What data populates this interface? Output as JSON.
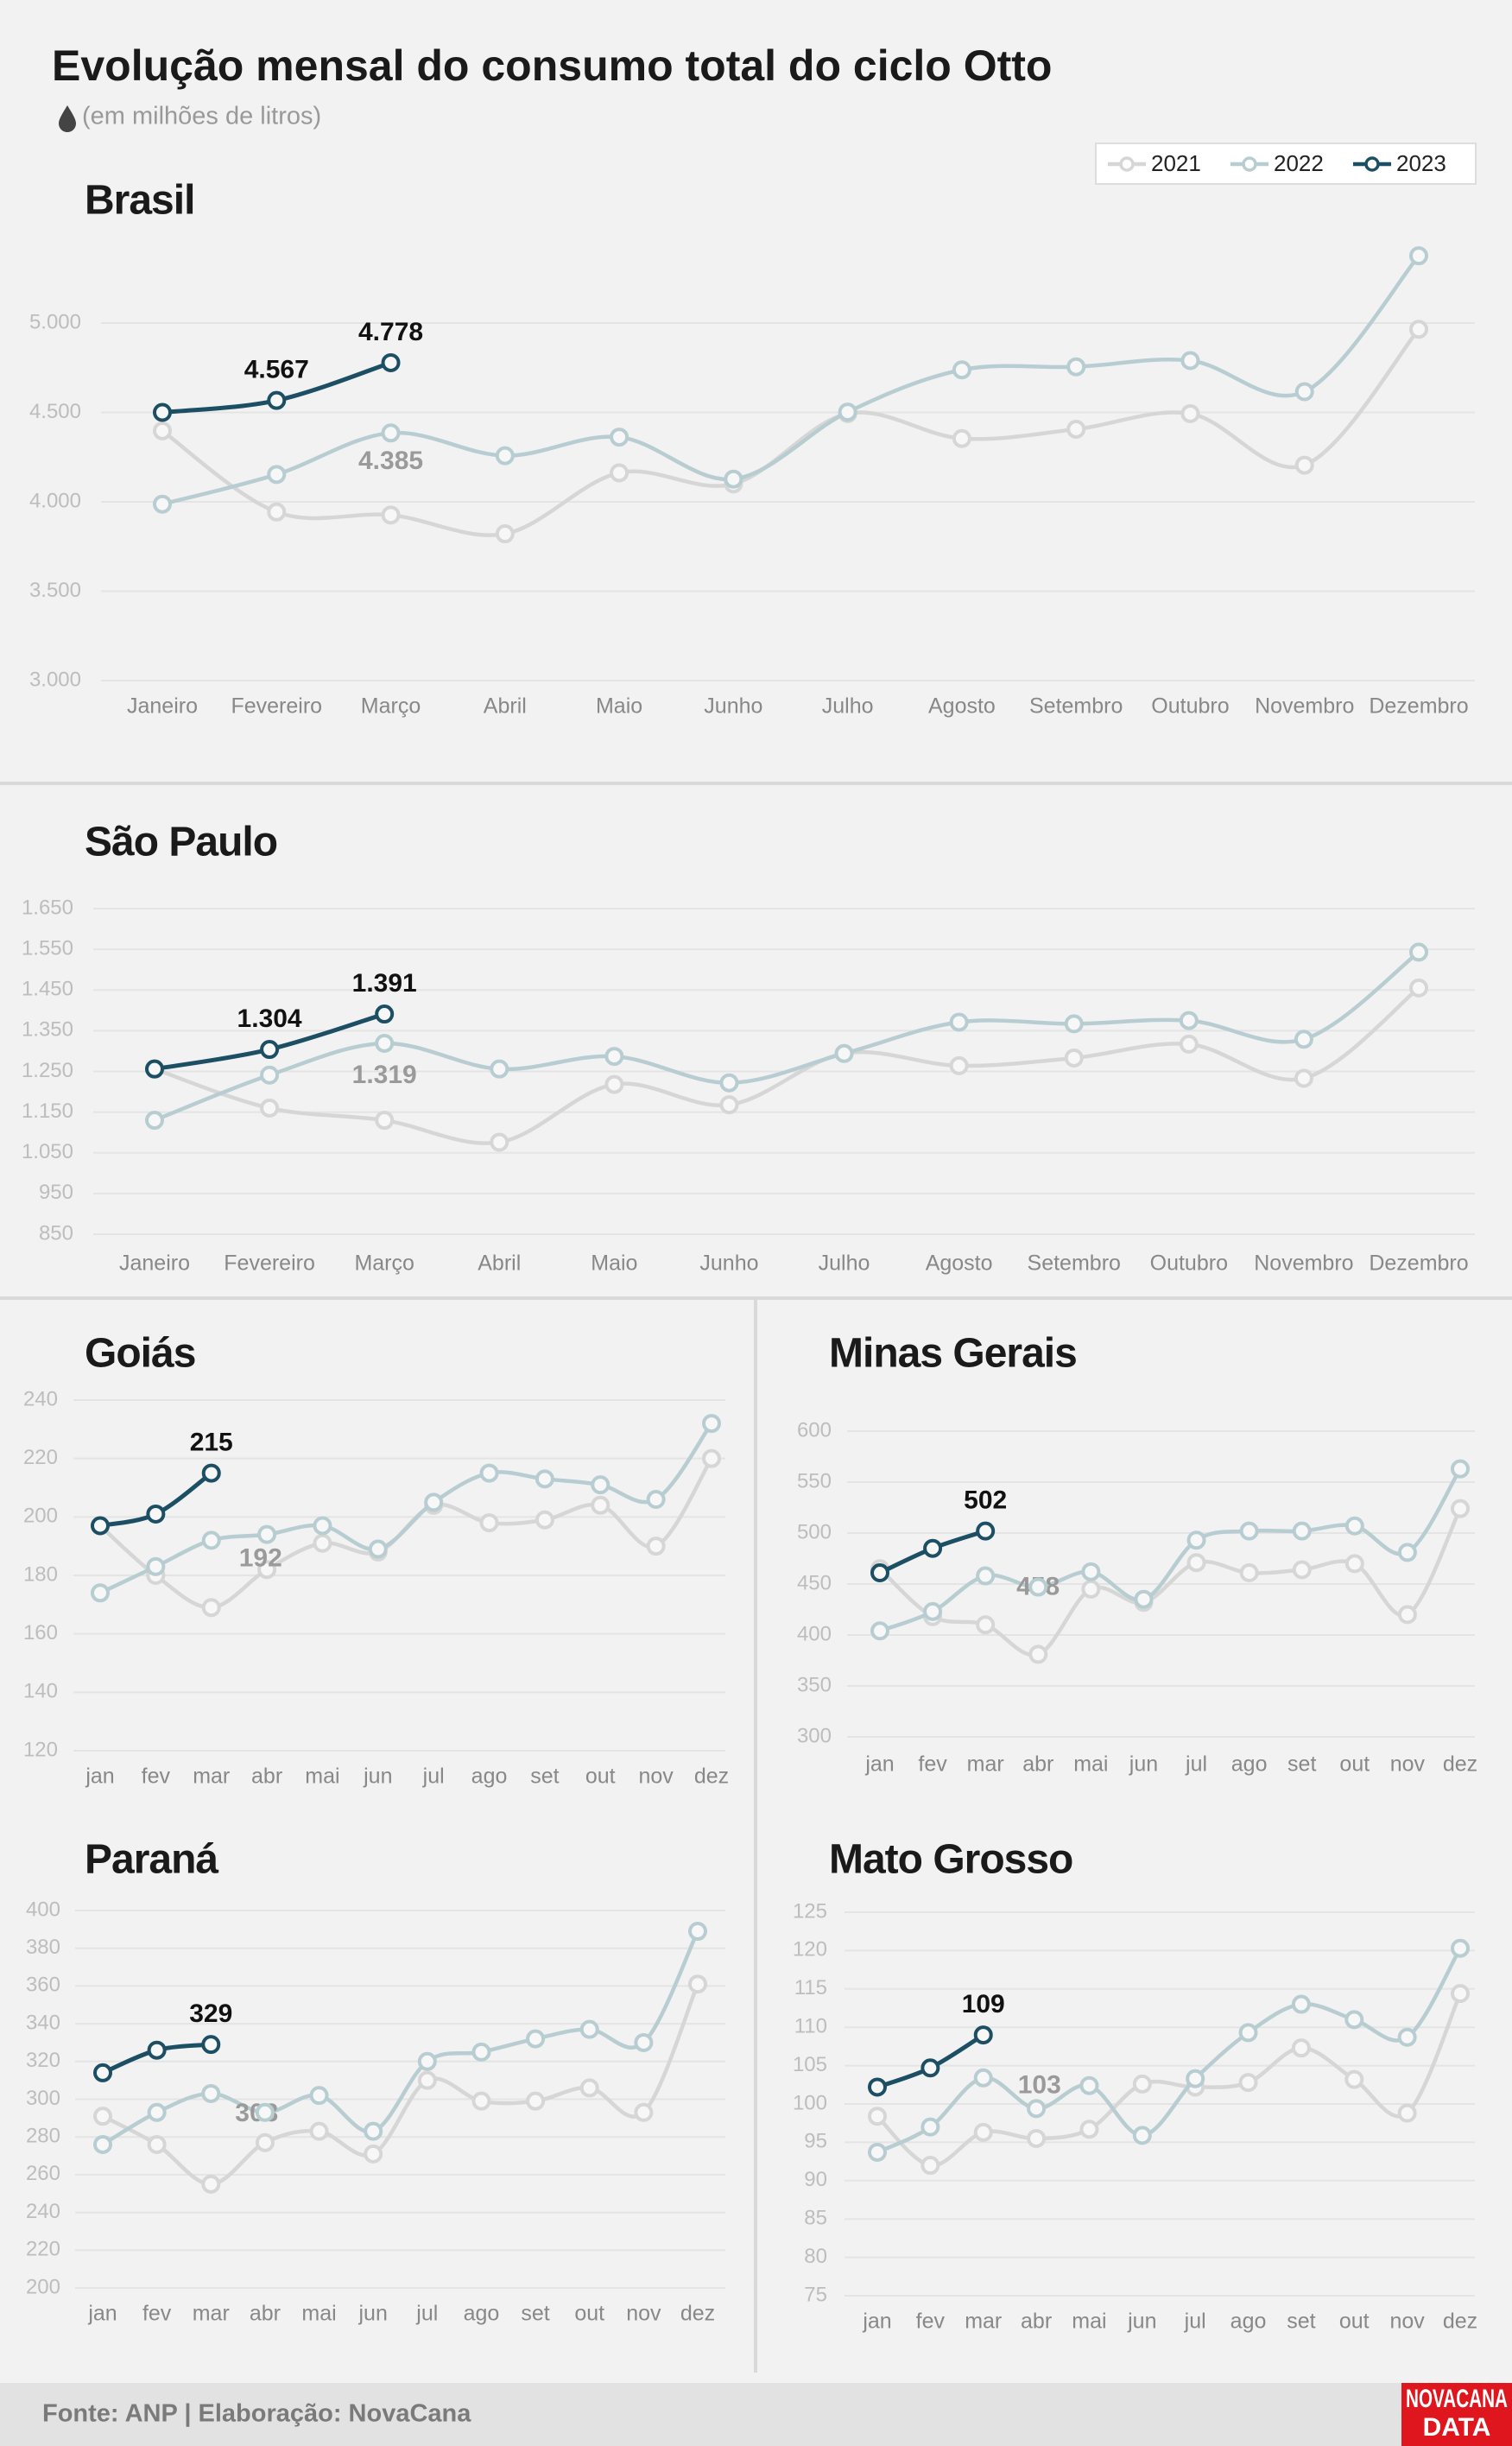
{
  "title": "Evolução mensal do consumo total do ciclo Otto",
  "subtitle": "(em milhões de litros)",
  "source": "Fonte: ANP | Elaboração: NovaCana",
  "logo": [
    "NOVACANA",
    "DATA"
  ],
  "chart_data": [
    {
      "type": "line",
      "title": "Brasil",
      "categories": [
        "Janeiro",
        "Fevereiro",
        "Março",
        "Abril",
        "Maio",
        "Junho",
        "Julho",
        "Agosto",
        "Setembro",
        "Outubro",
        "Novembro",
        "Dezembro"
      ],
      "series": [
        {
          "name": "2021",
          "color": "#d6d6d6",
          "values": [
            4397,
            3943,
            3926,
            3821,
            4162,
            4100,
            4493,
            4354,
            4406,
            4493,
            4205,
            4965
          ],
          "value_labels": [
            null,
            null,
            null,
            null,
            null,
            null,
            null,
            null,
            null,
            null,
            null,
            null
          ]
        },
        {
          "name": "2022",
          "color": "#b7cdd2",
          "values": [
            3987,
            4153,
            4385,
            4258,
            4362,
            4127,
            4502,
            4738,
            4755,
            4790,
            4616,
            5376
          ],
          "value_labels": [
            null,
            null,
            "4.385",
            null,
            null,
            null,
            null,
            null,
            null,
            null,
            null,
            null
          ]
        },
        {
          "name": "2023",
          "color": "#1c4f63",
          "values": [
            4500,
            4567,
            4778,
            null,
            null,
            null,
            null,
            null,
            null,
            null,
            null,
            null
          ],
          "value_labels": [
            null,
            "4.567",
            "4.778",
            null,
            null,
            null,
            null,
            null,
            null,
            null,
            null,
            null
          ]
        }
      ],
      "ylim": [
        3000,
        5000
      ],
      "yticks": [
        {
          "value": 3000,
          "label": "3.000"
        },
        {
          "value": 3500,
          "label": "3.500"
        },
        {
          "value": 4000,
          "label": "4.000"
        },
        {
          "value": 4500,
          "label": "4.500"
        },
        {
          "value": 5000,
          "label": "5.000"
        }
      ],
      "grid": true,
      "legend": "upper right"
    },
    {
      "type": "line",
      "title": "São Paulo",
      "categories": [
        "Janeiro",
        "Fevereiro",
        "Março",
        "Abril",
        "Maio",
        "Junho",
        "Julho",
        "Agosto",
        "Setembro",
        "Outubro",
        "Novembro",
        "Dezembro"
      ],
      "series": [
        {
          "color": "#d6d6d6",
          "values": [
            1256,
            1160,
            1130,
            1076,
            1218,
            1168,
            1294,
            1264,
            1283,
            1317,
            1233,
            1455
          ],
          "value_labels": [
            null,
            null,
            null,
            null,
            null,
            null,
            null,
            null,
            null,
            null,
            null,
            null
          ]
        },
        {
          "color": "#b7cdd2",
          "values": [
            1130,
            1241,
            1319,
            1256,
            1287,
            1222,
            1294,
            1371,
            1367,
            1375,
            1329,
            1543
          ],
          "value_labels": [
            null,
            null,
            "1.319",
            null,
            null,
            null,
            null,
            null,
            null,
            null,
            null,
            null
          ]
        },
        {
          "color": "#1c4f63",
          "values": [
            1256,
            1304,
            1391,
            null,
            null,
            null,
            null,
            null,
            null,
            null,
            null,
            null
          ],
          "value_labels": [
            null,
            "1.304",
            "1.391",
            null,
            null,
            null,
            null,
            null,
            null,
            null,
            null,
            null
          ]
        }
      ],
      "ylim": [
        850,
        1650
      ],
      "yticks": [
        850,
        950,
        {
          "value": 1050,
          "label": "1.050"
        },
        {
          "value": 1150,
          "label": "1.150"
        },
        {
          "value": 1250,
          "label": "1.250"
        },
        {
          "value": 1350,
          "label": "1.350"
        },
        {
          "value": 1450,
          "label": "1.450"
        },
        {
          "value": 1550,
          "label": "1.550"
        },
        {
          "value": 1650,
          "label": "1.650"
        }
      ],
      "grid": true
    },
    {
      "type": "line",
      "title": "Goiás",
      "categories": [
        "jan",
        "fev",
        "mar",
        "abr",
        "mai",
        "jun",
        "jul",
        "ago",
        "set",
        "out",
        "nov",
        "dez"
      ],
      "series": [
        {
          "color": "#d6d6d6",
          "values": [
            197,
            180,
            169,
            182,
            191,
            188,
            204,
            198,
            199,
            204,
            190,
            220
          ],
          "value_labels": [
            null,
            null,
            null,
            null,
            null,
            null,
            null,
            null,
            null,
            null,
            null,
            null
          ]
        },
        {
          "color": "#b7cdd2",
          "values": [
            174,
            183,
            192,
            194,
            197,
            189,
            205,
            215,
            213,
            211,
            206,
            232
          ],
          "value_labels": [
            null,
            null,
            "192",
            null,
            null,
            null,
            null,
            null,
            null,
            null,
            null,
            null
          ]
        },
        {
          "color": "#1c4f63",
          "values": [
            197,
            201,
            215,
            null,
            null,
            null,
            null,
            null,
            null,
            null,
            null,
            null
          ],
          "value_labels": [
            null,
            null,
            "215",
            null,
            null,
            null,
            null,
            null,
            null,
            null,
            null,
            null
          ]
        }
      ],
      "ylim": [
        120,
        240
      ],
      "yticks": [
        120,
        140,
        160,
        180,
        200,
        220,
        240
      ],
      "grid": true
    },
    {
      "type": "line",
      "title": "Minas Gerais",
      "categories": [
        "jan",
        "fev",
        "mar",
        "abr",
        "mai",
        "jun",
        "jul",
        "ago",
        "set",
        "out",
        "nov",
        "dez"
      ],
      "series": [
        {
          "color": "#d6d6d6",
          "values": [
            465,
            418,
            410,
            381,
            445,
            432,
            471,
            461,
            464,
            470,
            420,
            524
          ],
          "value_labels": [
            null,
            null,
            null,
            null,
            null,
            null,
            null,
            null,
            null,
            null,
            null,
            null
          ]
        },
        {
          "color": "#b7cdd2",
          "values": [
            404,
            423,
            458,
            447,
            462,
            435,
            493,
            502,
            502,
            507,
            481,
            563
          ],
          "value_labels": [
            null,
            null,
            "458",
            null,
            null,
            null,
            null,
            null,
            null,
            null,
            null,
            null
          ]
        },
        {
          "color": "#1c4f63",
          "values": [
            461,
            485,
            502,
            null,
            null,
            null,
            null,
            null,
            null,
            null,
            null,
            null
          ],
          "value_labels": [
            null,
            null,
            "502",
            null,
            null,
            null,
            null,
            null,
            null,
            null,
            null,
            null
          ]
        }
      ],
      "ylim": [
        300,
        600
      ],
      "yticks": [
        300,
        350,
        400,
        450,
        500,
        550,
        600
      ],
      "grid": true
    },
    {
      "type": "line",
      "title": "Paraná",
      "categories": [
        "jan",
        "fev",
        "mar",
        "abr",
        "mai",
        "jun",
        "jul",
        "ago",
        "set",
        "out",
        "nov",
        "dez"
      ],
      "series": [
        {
          "color": "#d6d6d6",
          "values": [
            291,
            276,
            255,
            277,
            283,
            271,
            310,
            299,
            299,
            306,
            293,
            361
          ],
          "value_labels": [
            null,
            null,
            null,
            null,
            null,
            null,
            null,
            null,
            null,
            null,
            null,
            null
          ]
        },
        {
          "color": "#b7cdd2",
          "values": [
            276,
            293,
            303,
            293,
            302,
            283,
            320,
            325,
            332,
            337,
            330,
            389
          ],
          "value_labels": [
            null,
            null,
            "303",
            null,
            null,
            null,
            null,
            null,
            null,
            null,
            null,
            null
          ]
        },
        {
          "color": "#1c4f63",
          "values": [
            314,
            326,
            329,
            null,
            null,
            null,
            null,
            null,
            null,
            null,
            null,
            null
          ],
          "value_labels": [
            null,
            null,
            "329",
            null,
            null,
            null,
            null,
            null,
            null,
            null,
            null,
            null
          ]
        }
      ],
      "ylim": [
        200,
        400
      ],
      "yticks": [
        200,
        220,
        240,
        260,
        280,
        300,
        320,
        340,
        360,
        380,
        400
      ],
      "grid": true
    },
    {
      "type": "line",
      "title": "Mato Grosso",
      "categories": [
        "jan",
        "fev",
        "mar",
        "abr",
        "mai",
        "jun",
        "jul",
        "ago",
        "set",
        "out",
        "nov",
        "dez"
      ],
      "series": [
        {
          "color": "#d6d6d6",
          "values": [
            98.4,
            92,
            96.3,
            95.5,
            96.7,
            102.6,
            102.2,
            102.8,
            107.3,
            103.2,
            98.8,
            114.4
          ],
          "value_labels": [
            null,
            null,
            null,
            null,
            null,
            null,
            null,
            null,
            null,
            null,
            null,
            null
          ]
        },
        {
          "color": "#b7cdd2",
          "values": [
            93.7,
            97,
            103.4,
            99.4,
            102.4,
            95.9,
            103.3,
            109.3,
            113,
            111,
            108.7,
            120.3
          ],
          "value_labels": [
            null,
            null,
            "103",
            null,
            null,
            null,
            null,
            null,
            null,
            null,
            null,
            null
          ]
        },
        {
          "color": "#1c4f63",
          "values": [
            102.2,
            104.7,
            109,
            null,
            null,
            null,
            null,
            null,
            null,
            null,
            null,
            null
          ],
          "value_labels": [
            null,
            null,
            "109",
            null,
            null,
            null,
            null,
            null,
            null,
            null,
            null,
            null
          ]
        }
      ],
      "ylim": [
        75,
        125
      ],
      "yticks": [
        75,
        80,
        85,
        90,
        95,
        100,
        105,
        110,
        115,
        120,
        125
      ],
      "grid": true
    }
  ]
}
